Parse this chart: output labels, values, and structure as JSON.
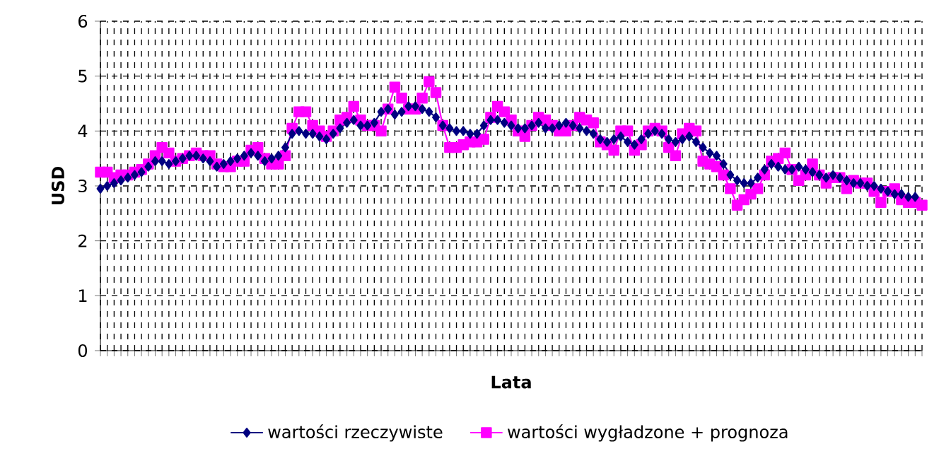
{
  "chart_data": {
    "type": "line",
    "xlabel": "Lata",
    "ylabel": "USD",
    "categories": [
      null,
      null,
      null,
      null,
      null,
      null,
      null,
      null,
      null,
      null,
      null,
      null,
      null,
      null,
      null,
      null,
      null,
      null,
      null,
      null,
      null,
      null,
      null,
      null,
      null,
      null,
      null,
      null,
      null,
      null,
      null,
      null,
      null,
      null,
      null,
      null,
      null,
      null,
      null,
      null,
      null,
      null,
      null,
      null,
      null,
      null,
      null,
      null,
      null,
      null,
      null,
      null,
      null,
      null,
      null,
      null,
      null,
      null,
      null,
      null,
      null,
      null,
      null,
      null,
      null,
      null,
      null,
      null,
      null,
      null,
      null,
      null,
      null,
      null,
      null,
      null,
      null,
      null,
      null,
      null,
      null,
      null,
      null,
      null,
      null,
      null,
      null,
      null,
      null,
      null,
      null,
      null,
      null,
      null,
      null,
      null,
      null,
      null,
      null,
      null,
      null,
      null,
      null,
      null,
      null,
      null,
      null,
      null,
      null,
      null,
      null,
      null,
      null,
      null,
      null,
      null,
      null,
      null,
      null,
      null,
      null
    ],
    "series": [
      {
        "name": "wartości rzeczywiste",
        "color": "#000080",
        "marker": "diamond",
        "values": [
          2.95,
          3.0,
          3.05,
          3.1,
          3.15,
          3.2,
          3.25,
          3.35,
          3.45,
          3.45,
          3.4,
          3.45,
          3.5,
          3.55,
          3.55,
          3.5,
          3.45,
          3.35,
          3.4,
          3.45,
          3.5,
          3.55,
          3.6,
          3.55,
          3.45,
          3.5,
          3.55,
          3.7,
          3.95,
          4.0,
          3.95,
          3.95,
          3.9,
          3.85,
          3.95,
          4.05,
          4.15,
          4.2,
          4.1,
          4.1,
          4.15,
          4.35,
          4.4,
          4.3,
          4.35,
          4.45,
          4.45,
          4.4,
          4.35,
          4.25,
          4.1,
          4.05,
          4.0,
          4.0,
          3.95,
          3.95,
          4.1,
          4.2,
          4.2,
          4.15,
          4.1,
          4.05,
          4.05,
          4.1,
          4.15,
          4.05,
          4.05,
          4.1,
          4.15,
          4.1,
          4.05,
          4.0,
          3.95,
          3.85,
          3.8,
          3.85,
          3.9,
          3.8,
          3.75,
          3.85,
          3.95,
          4.0,
          3.95,
          3.85,
          3.8,
          3.85,
          3.9,
          3.8,
          3.7,
          3.6,
          3.55,
          3.4,
          3.2,
          3.1,
          3.05,
          3.05,
          3.15,
          3.3,
          3.4,
          3.35,
          3.3,
          3.3,
          3.35,
          3.3,
          3.25,
          3.2,
          3.15,
          3.2,
          3.15,
          3.1,
          3.05,
          3.05,
          3.0,
          3.0,
          2.95,
          2.9,
          2.85,
          2.85,
          2.8,
          2.8,
          null
        ]
      },
      {
        "name": "wartości wygładzone + prognoza",
        "color": "#ff00ff",
        "marker": "square",
        "values": [
          3.25,
          3.25,
          3.15,
          3.2,
          3.2,
          3.25,
          3.3,
          3.4,
          3.55,
          3.7,
          3.6,
          3.45,
          3.5,
          3.55,
          3.6,
          3.55,
          3.55,
          3.4,
          3.35,
          3.35,
          3.45,
          3.45,
          3.65,
          3.7,
          3.5,
          3.4,
          3.4,
          3.55,
          4.05,
          4.35,
          4.35,
          4.1,
          4.0,
          3.9,
          4.0,
          4.2,
          4.25,
          4.45,
          4.2,
          4.1,
          4.1,
          4.0,
          4.4,
          4.8,
          4.6,
          4.4,
          4.4,
          4.6,
          4.9,
          4.7,
          4.1,
          3.7,
          3.7,
          3.75,
          3.8,
          3.8,
          3.85,
          4.25,
          4.45,
          4.35,
          4.2,
          4.0,
          3.9,
          4.1,
          4.25,
          4.2,
          4.1,
          4.0,
          4.0,
          4.1,
          4.25,
          4.2,
          4.15,
          3.8,
          3.75,
          3.65,
          4.0,
          4.0,
          3.65,
          3.75,
          4.0,
          4.05,
          4.0,
          3.7,
          3.55,
          3.95,
          4.05,
          4.0,
          3.45,
          3.4,
          3.35,
          3.2,
          2.95,
          2.65,
          2.75,
          2.85,
          2.95,
          3.2,
          3.45,
          3.5,
          3.6,
          3.3,
          3.1,
          3.2,
          3.4,
          3.2,
          3.05,
          3.15,
          3.15,
          2.95,
          3.1,
          3.05,
          3.05,
          2.9,
          2.7,
          2.9,
          2.95,
          2.75,
          2.7,
          2.7,
          2.65
        ]
      }
    ],
    "ylim": [
      0,
      6
    ],
    "yticks": [
      0,
      1,
      2,
      3,
      4,
      5,
      6
    ],
    "grid": true,
    "legend": "bottom",
    "tick_labels": "y"
  }
}
